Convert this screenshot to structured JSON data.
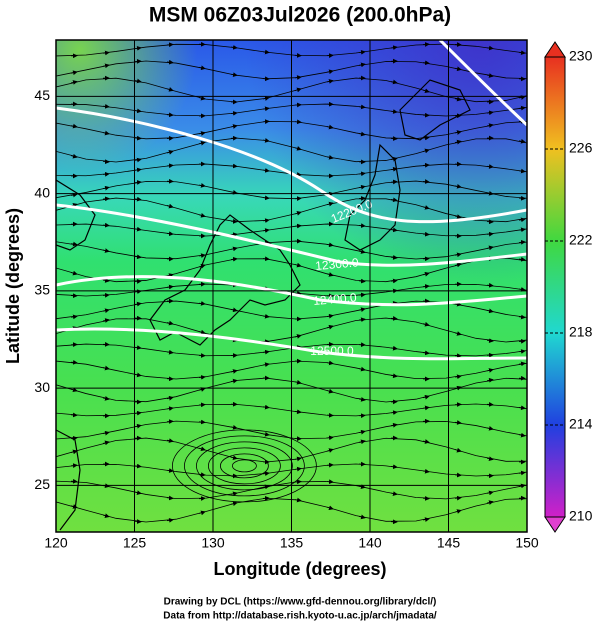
{
  "title": "MSM 06Z03Jul2026 (200.0hPa)",
  "xlabel": "Longitude (degrees)",
  "ylabel": "Latitude  (degrees)",
  "xlim": [
    120,
    150
  ],
  "ylim": [
    22.6,
    47.9
  ],
  "xticks": [
    120,
    125,
    130,
    135,
    140,
    145,
    150
  ],
  "yticks": [
    25,
    30,
    35,
    40,
    45
  ],
  "colorbar": {
    "lim": [
      210,
      230
    ],
    "ticks": [
      210,
      214,
      218,
      222,
      226,
      230
    ]
  },
  "contour_labels": [
    "12200.0",
    "12300.0",
    "12400.0",
    "12500.0"
  ],
  "credits": [
    "Drawing by DCL (https://www.gfd-dennou.org/library/dcl/)",
    "Data from http://database.rish.kyoto-u.ac.jp/arch/jmadata/"
  ]
}
